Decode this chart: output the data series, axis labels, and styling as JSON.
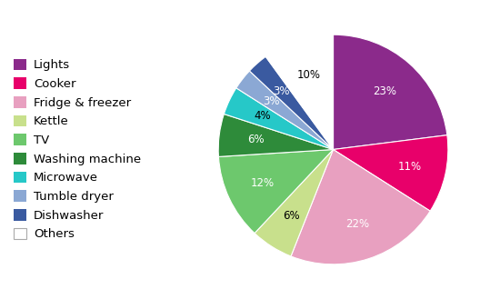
{
  "labels": [
    "Lights",
    "Cooker",
    "Fridge & freezer",
    "Kettle",
    "TV",
    "Washing machine",
    "Microwave",
    "Tumble dryer",
    "Dishwasher",
    "Others"
  ],
  "values": [
    23,
    11,
    22,
    6,
    12,
    6,
    4,
    3,
    3,
    10
  ],
  "colors": [
    "#8B2A8B",
    "#E8006A",
    "#E8A0C0",
    "#C8E08C",
    "#6DC86D",
    "#2E8B3A",
    "#26C8C8",
    "#8BA8D4",
    "#3A5AA0",
    "#FFFFFF"
  ],
  "label_colors": [
    "white",
    "white",
    "white",
    "black",
    "white",
    "white",
    "black",
    "black",
    "white",
    "black"
  ],
  "background_color": "#ffffff",
  "startangle": 90,
  "legend_fontsize": 9.5,
  "pct_fontsize": 8.5,
  "pct_colors": [
    "white",
    "white",
    "white",
    "black",
    "white",
    "white",
    "black",
    "white",
    "white",
    "black"
  ]
}
